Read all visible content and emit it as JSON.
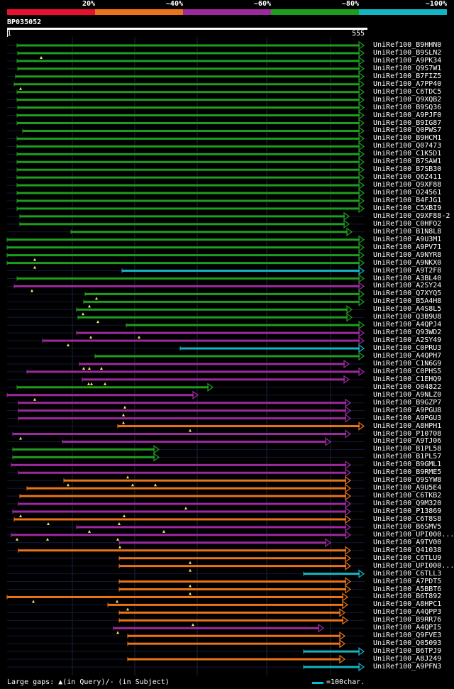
{
  "legend": [
    {
      "label": "20%",
      "color": "#e8102e"
    },
    {
      "label": "~40%",
      "color": "#ea7417"
    },
    {
      "label": "~60%",
      "color": "#9c2a9e"
    },
    {
      "label": "~80%",
      "color": "#1e9e1e"
    },
    {
      "label": "~100%",
      "color": "#14b5c3"
    }
  ],
  "query": {
    "id": "BP035052",
    "start": "1",
    "end": "555"
  },
  "footer": {
    "gaps_text": "Large gaps: ▲(in Query)/- (in Subject)",
    "scale_text": "=100char."
  },
  "hits": [
    {
      "name": "UniRef100_B9HHN0",
      "c": 3,
      "s": 24,
      "e": 513,
      "arrow": "right",
      "mk": []
    },
    {
      "name": "UniRef100_B9SLN2",
      "c": 3,
      "s": 25,
      "e": 513,
      "arrow": "right",
      "mk": [
        58
      ]
    },
    {
      "name": "UniRef100_A9PK34",
      "c": 3,
      "s": 24,
      "e": 513,
      "arrow": "right",
      "mk": []
    },
    {
      "name": "UniRef100_Q9S7W1",
      "c": 3,
      "s": 25,
      "e": 513,
      "arrow": "right",
      "mk": []
    },
    {
      "name": "UniRef100_B7FIZ5",
      "c": 3,
      "s": 22,
      "e": 513,
      "arrow": "right",
      "mk": []
    },
    {
      "name": "UniRef100_A7PP40",
      "c": 3,
      "s": 20,
      "e": 513,
      "arrow": "right",
      "mk": [
        29
      ]
    },
    {
      "name": "UniRef100_C6TDC5",
      "c": 3,
      "s": 24,
      "e": 513,
      "arrow": "right",
      "mk": []
    },
    {
      "name": "UniRef100_Q9XQB2",
      "c": 3,
      "s": 24,
      "e": 513,
      "arrow": "right",
      "mk": []
    },
    {
      "name": "UniRef100_B9SQ36",
      "c": 3,
      "s": 25,
      "e": 513,
      "arrow": "right",
      "mk": []
    },
    {
      "name": "UniRef100_A9PJF0",
      "c": 3,
      "s": 24,
      "e": 513,
      "arrow": "right",
      "mk": []
    },
    {
      "name": "UniRef100_B9IG87",
      "c": 3,
      "s": 24,
      "e": 513,
      "arrow": "right",
      "mk": []
    },
    {
      "name": "UniRef100_Q0PWS7",
      "c": 3,
      "s": 32,
      "e": 513,
      "arrow": "right",
      "mk": []
    },
    {
      "name": "UniRef100_B9HCM1",
      "c": 3,
      "s": 24,
      "e": 513,
      "arrow": "right",
      "mk": []
    },
    {
      "name": "UniRef100_Q07473",
      "c": 3,
      "s": 24,
      "e": 513,
      "arrow": "right",
      "mk": []
    },
    {
      "name": "UniRef100_C1K5D1",
      "c": 3,
      "s": 24,
      "e": 513,
      "arrow": "right",
      "mk": []
    },
    {
      "name": "UniRef100_B7SAW1",
      "c": 3,
      "s": 24,
      "e": 513,
      "arrow": "right",
      "mk": []
    },
    {
      "name": "UniRef100_B7SB30",
      "c": 3,
      "s": 24,
      "e": 513,
      "arrow": "right",
      "mk": []
    },
    {
      "name": "UniRef100_Q6Z411",
      "c": 3,
      "s": 24,
      "e": 513,
      "arrow": "right",
      "mk": []
    },
    {
      "name": "UniRef100_Q9XF88",
      "c": 3,
      "s": 24,
      "e": 513,
      "arrow": "right",
      "mk": []
    },
    {
      "name": "UniRef100_O24561",
      "c": 3,
      "s": 24,
      "e": 513,
      "arrow": "right",
      "mk": []
    },
    {
      "name": "UniRef100_B4FJG1",
      "c": 3,
      "s": 24,
      "e": 513,
      "arrow": "right",
      "mk": []
    },
    {
      "name": "UniRef100_C5XBI9",
      "c": 3,
      "s": 24,
      "e": 513,
      "arrow": "right",
      "mk": []
    },
    {
      "name": "UniRef100_Q9XF88-2",
      "c": 3,
      "s": 28,
      "e": 492,
      "arrow": "right",
      "mk": []
    },
    {
      "name": "UniRef100_C0HFO2",
      "c": 3,
      "s": 28,
      "e": 492,
      "arrow": "right",
      "mk": []
    },
    {
      "name": "UniRef100_B1N8L8",
      "c": 3,
      "s": 100,
      "e": 496,
      "arrow": "right",
      "mk": []
    },
    {
      "name": "UniRef100_A9U3M1",
      "c": 3,
      "s": 10,
      "e": 513,
      "arrow": "right",
      "mk": []
    },
    {
      "name": "UniRef100_A9PV71",
      "c": 3,
      "s": 10,
      "e": 513,
      "arrow": "right",
      "mk": []
    },
    {
      "name": "UniRef100_A9NYR8",
      "c": 3,
      "s": 10,
      "e": 513,
      "arrow": "right",
      "mk": [
        49
      ]
    },
    {
      "name": "UniRef100_A9NKX0",
      "c": 3,
      "s": 10,
      "e": 513,
      "arrow": "right",
      "mk": [
        49
      ]
    },
    {
      "name": "UniRef100_A9T2F8",
      "c": 4,
      "s": 172,
      "e": 513,
      "arrow": "right",
      "mk": []
    },
    {
      "name": "UniRef100_A3BL40",
      "c": 3,
      "s": 24,
      "e": 513,
      "arrow": "right",
      "mk": []
    },
    {
      "name": "UniRef100_A2SY24",
      "c": 2,
      "s": 20,
      "e": 513,
      "arrow": "right",
      "mk": [
        45
      ]
    },
    {
      "name": "UniRef100_Q7XYQ5",
      "c": 3,
      "s": 120,
      "e": 513,
      "arrow": "right",
      "mk": [
        136
      ]
    },
    {
      "name": "UniRef100_B5A4H8",
      "c": 3,
      "s": 118,
      "e": 513,
      "arrow": "right",
      "mk": [
        126
      ]
    },
    {
      "name": "UniRef100_A4S8L5",
      "c": 3,
      "s": 108,
      "e": 496,
      "arrow": "right",
      "mk": [
        117
      ]
    },
    {
      "name": "UniRef100_Q3B9U8",
      "c": 3,
      "s": 110,
      "e": 496,
      "arrow": "right",
      "mk": [
        138
      ]
    },
    {
      "name": "UniRef100_A4QPJ4",
      "c": 3,
      "s": 178,
      "e": 513,
      "arrow": "right",
      "mk": []
    },
    {
      "name": "UniRef100_Q93WD2",
      "c": 2,
      "s": 108,
      "e": 513,
      "arrow": "right",
      "mk": [
        128,
        196
      ]
    },
    {
      "name": "UniRef100_A2SY49",
      "c": 2,
      "s": 60,
      "e": 513,
      "arrow": "right",
      "mk": [
        96
      ]
    },
    {
      "name": "UniRef100_C0PRU3",
      "c": 4,
      "s": 254,
      "e": 513,
      "arrow": "right",
      "mk": []
    },
    {
      "name": "UniRef100_A4QPH7",
      "c": 3,
      "s": 134,
      "e": 513,
      "arrow": "right",
      "mk": []
    },
    {
      "name": "UniRef100_C1N6G9",
      "c": 2,
      "s": 112,
      "e": 492,
      "arrow": "right",
      "mk": [
        118,
        126,
        143
      ]
    },
    {
      "name": "UniRef100_C0PHS5",
      "c": 2,
      "s": 38,
      "e": 513,
      "arrow": "right",
      "mk": []
    },
    {
      "name": "UniRef100_C1EHQ9",
      "c": 2,
      "s": 116,
      "e": 492,
      "arrow": "right",
      "mk": [
        125,
        129,
        148
      ]
    },
    {
      "name": "UniRef100_O04822",
      "c": 3,
      "s": 24,
      "e": 300,
      "arrow": "right",
      "mk": []
    },
    {
      "name": "UniRef100_A9NLZ0",
      "c": 2,
      "s": 10,
      "e": 279,
      "arrow": "right",
      "mk": [
        49
      ]
    },
    {
      "name": "UniRef100_B9GZP7",
      "c": 2,
      "s": 26,
      "e": 494,
      "arrow": "right",
      "mk": [
        176
      ]
    },
    {
      "name": "UniRef100_A9PGU8",
      "c": 2,
      "s": 26,
      "e": 494,
      "arrow": "right",
      "mk": [
        174
      ]
    },
    {
      "name": "UniRef100_A9PGU3",
      "c": 2,
      "s": 26,
      "e": 494,
      "arrow": "right",
      "mk": [
        174
      ]
    },
    {
      "name": "UniRef100_A8HPH1",
      "c": 1,
      "s": 166,
      "e": 513,
      "arrow": "right",
      "mk": [
        268
      ]
    },
    {
      "name": "UniRef100_P10708",
      "c": 2,
      "s": 18,
      "e": 494,
      "arrow": "right",
      "mk": [
        29
      ]
    },
    {
      "name": "UniRef100_A9TJ06",
      "c": 2,
      "s": 88,
      "e": 466,
      "arrow": "right",
      "mk": []
    },
    {
      "name": "UniRef100_B1PL58",
      "c": 3,
      "s": 18,
      "e": 224,
      "arrow": "right",
      "mk": []
    },
    {
      "name": "UniRef100_B1PL57",
      "c": 3,
      "s": 18,
      "e": 224,
      "arrow": "right",
      "mk": []
    },
    {
      "name": "UniRef100_B9GML1",
      "c": 2,
      "s": 16,
      "e": 494,
      "arrow": "right",
      "mk": []
    },
    {
      "name": "UniRef100_B9RME5",
      "c": 2,
      "s": 26,
      "e": 494,
      "arrow": "right",
      "mk": [
        180
      ]
    },
    {
      "name": "UniRef100_Q9SYW8",
      "c": 1,
      "s": 90,
      "e": 494,
      "arrow": "right",
      "mk": [
        96,
        187,
        219
      ]
    },
    {
      "name": "UniRef100_A9U5E4",
      "c": 1,
      "s": 38,
      "e": 494,
      "arrow": "right",
      "mk": []
    },
    {
      "name": "UniRef100_C6TKB2",
      "c": 1,
      "s": 28,
      "e": 494,
      "arrow": "right",
      "mk": []
    },
    {
      "name": "UniRef100_Q9M320",
      "c": 2,
      "s": 26,
      "e": 494,
      "arrow": "right",
      "mk": [
        262
      ]
    },
    {
      "name": "UniRef100_P13869",
      "c": 2,
      "s": 18,
      "e": 494,
      "arrow": "right",
      "mk": [
        29,
        175
      ]
    },
    {
      "name": "UniRef100_C6T8S8",
      "c": 1,
      "s": 20,
      "e": 494,
      "arrow": "right",
      "mk": [
        68,
        168
      ]
    },
    {
      "name": "UniRef100_B6SMV5",
      "c": 2,
      "s": 108,
      "e": 494,
      "arrow": "right",
      "mk": [
        126,
        231
      ]
    },
    {
      "name": "UniRef100_UPI000...",
      "c": 2,
      "s": 16,
      "e": 494,
      "arrow": "right",
      "mk": [
        24,
        67,
        166
      ]
    },
    {
      "name": "UniRef100_A9TV00",
      "c": 2,
      "s": 168,
      "e": 466,
      "arrow": "right",
      "mk": [
        169
      ]
    },
    {
      "name": "UniRef100_Q41038",
      "c": 1,
      "s": 26,
      "e": 494,
      "arrow": "right",
      "mk": []
    },
    {
      "name": "UniRef100_C6TLU9",
      "c": 1,
      "s": 168,
      "e": 494,
      "arrow": "right",
      "mk": [
        268
      ]
    },
    {
      "name": "UniRef100_UPI000...",
      "c": 1,
      "s": 168,
      "e": 494,
      "arrow": "right",
      "mk": [
        268
      ]
    },
    {
      "name": "UniRef100_C6TLL3",
      "c": 4,
      "s": 428,
      "e": 513,
      "arrow": "right",
      "mk": []
    },
    {
      "name": "UniRef100_A7PDT5",
      "c": 1,
      "s": 168,
      "e": 494,
      "arrow": "right",
      "mk": [
        268
      ]
    },
    {
      "name": "UniRef100_A5BBT6",
      "c": 1,
      "s": 168,
      "e": 494,
      "arrow": "right",
      "mk": [
        268
      ]
    },
    {
      "name": "UniRef100_B6T892",
      "c": 1,
      "s": 10,
      "e": 490,
      "arrow": "right",
      "mk": [
        47,
        165
      ]
    },
    {
      "name": "UniRef100_A8HPC1",
      "c": 1,
      "s": 152,
      "e": 490,
      "arrow": "right",
      "mk": [
        180
      ]
    },
    {
      "name": "UniRef100_A4QPP3",
      "c": 1,
      "s": 168,
      "e": 486,
      "arrow": "right",
      "mk": []
    },
    {
      "name": "UniRef100_B9RR76",
      "c": 1,
      "s": 168,
      "e": 490,
      "arrow": "right",
      "mk": [
        272
      ]
    },
    {
      "name": "UniRef100_A4QPI5",
      "c": 2,
      "s": 160,
      "e": 456,
      "arrow": "right",
      "mk": [
        166
      ]
    },
    {
      "name": "UniRef100_Q9FVE3",
      "c": 1,
      "s": 180,
      "e": 486,
      "arrow": "right",
      "mk": []
    },
    {
      "name": "UniRef100_Q05093",
      "c": 1,
      "s": 180,
      "e": 486,
      "arrow": "right",
      "mk": []
    },
    {
      "name": "UniRef100_B6TPJ9",
      "c": 4,
      "s": 428,
      "e": 513,
      "arrow": "right",
      "mk": []
    },
    {
      "name": "UniRef100_A8J249",
      "c": 1,
      "s": 180,
      "e": 486,
      "arrow": "right",
      "mk": []
    },
    {
      "name": "UniRef100_A9PFN3",
      "c": 4,
      "s": 428,
      "e": 513,
      "arrow": "right",
      "mk": []
    }
  ]
}
